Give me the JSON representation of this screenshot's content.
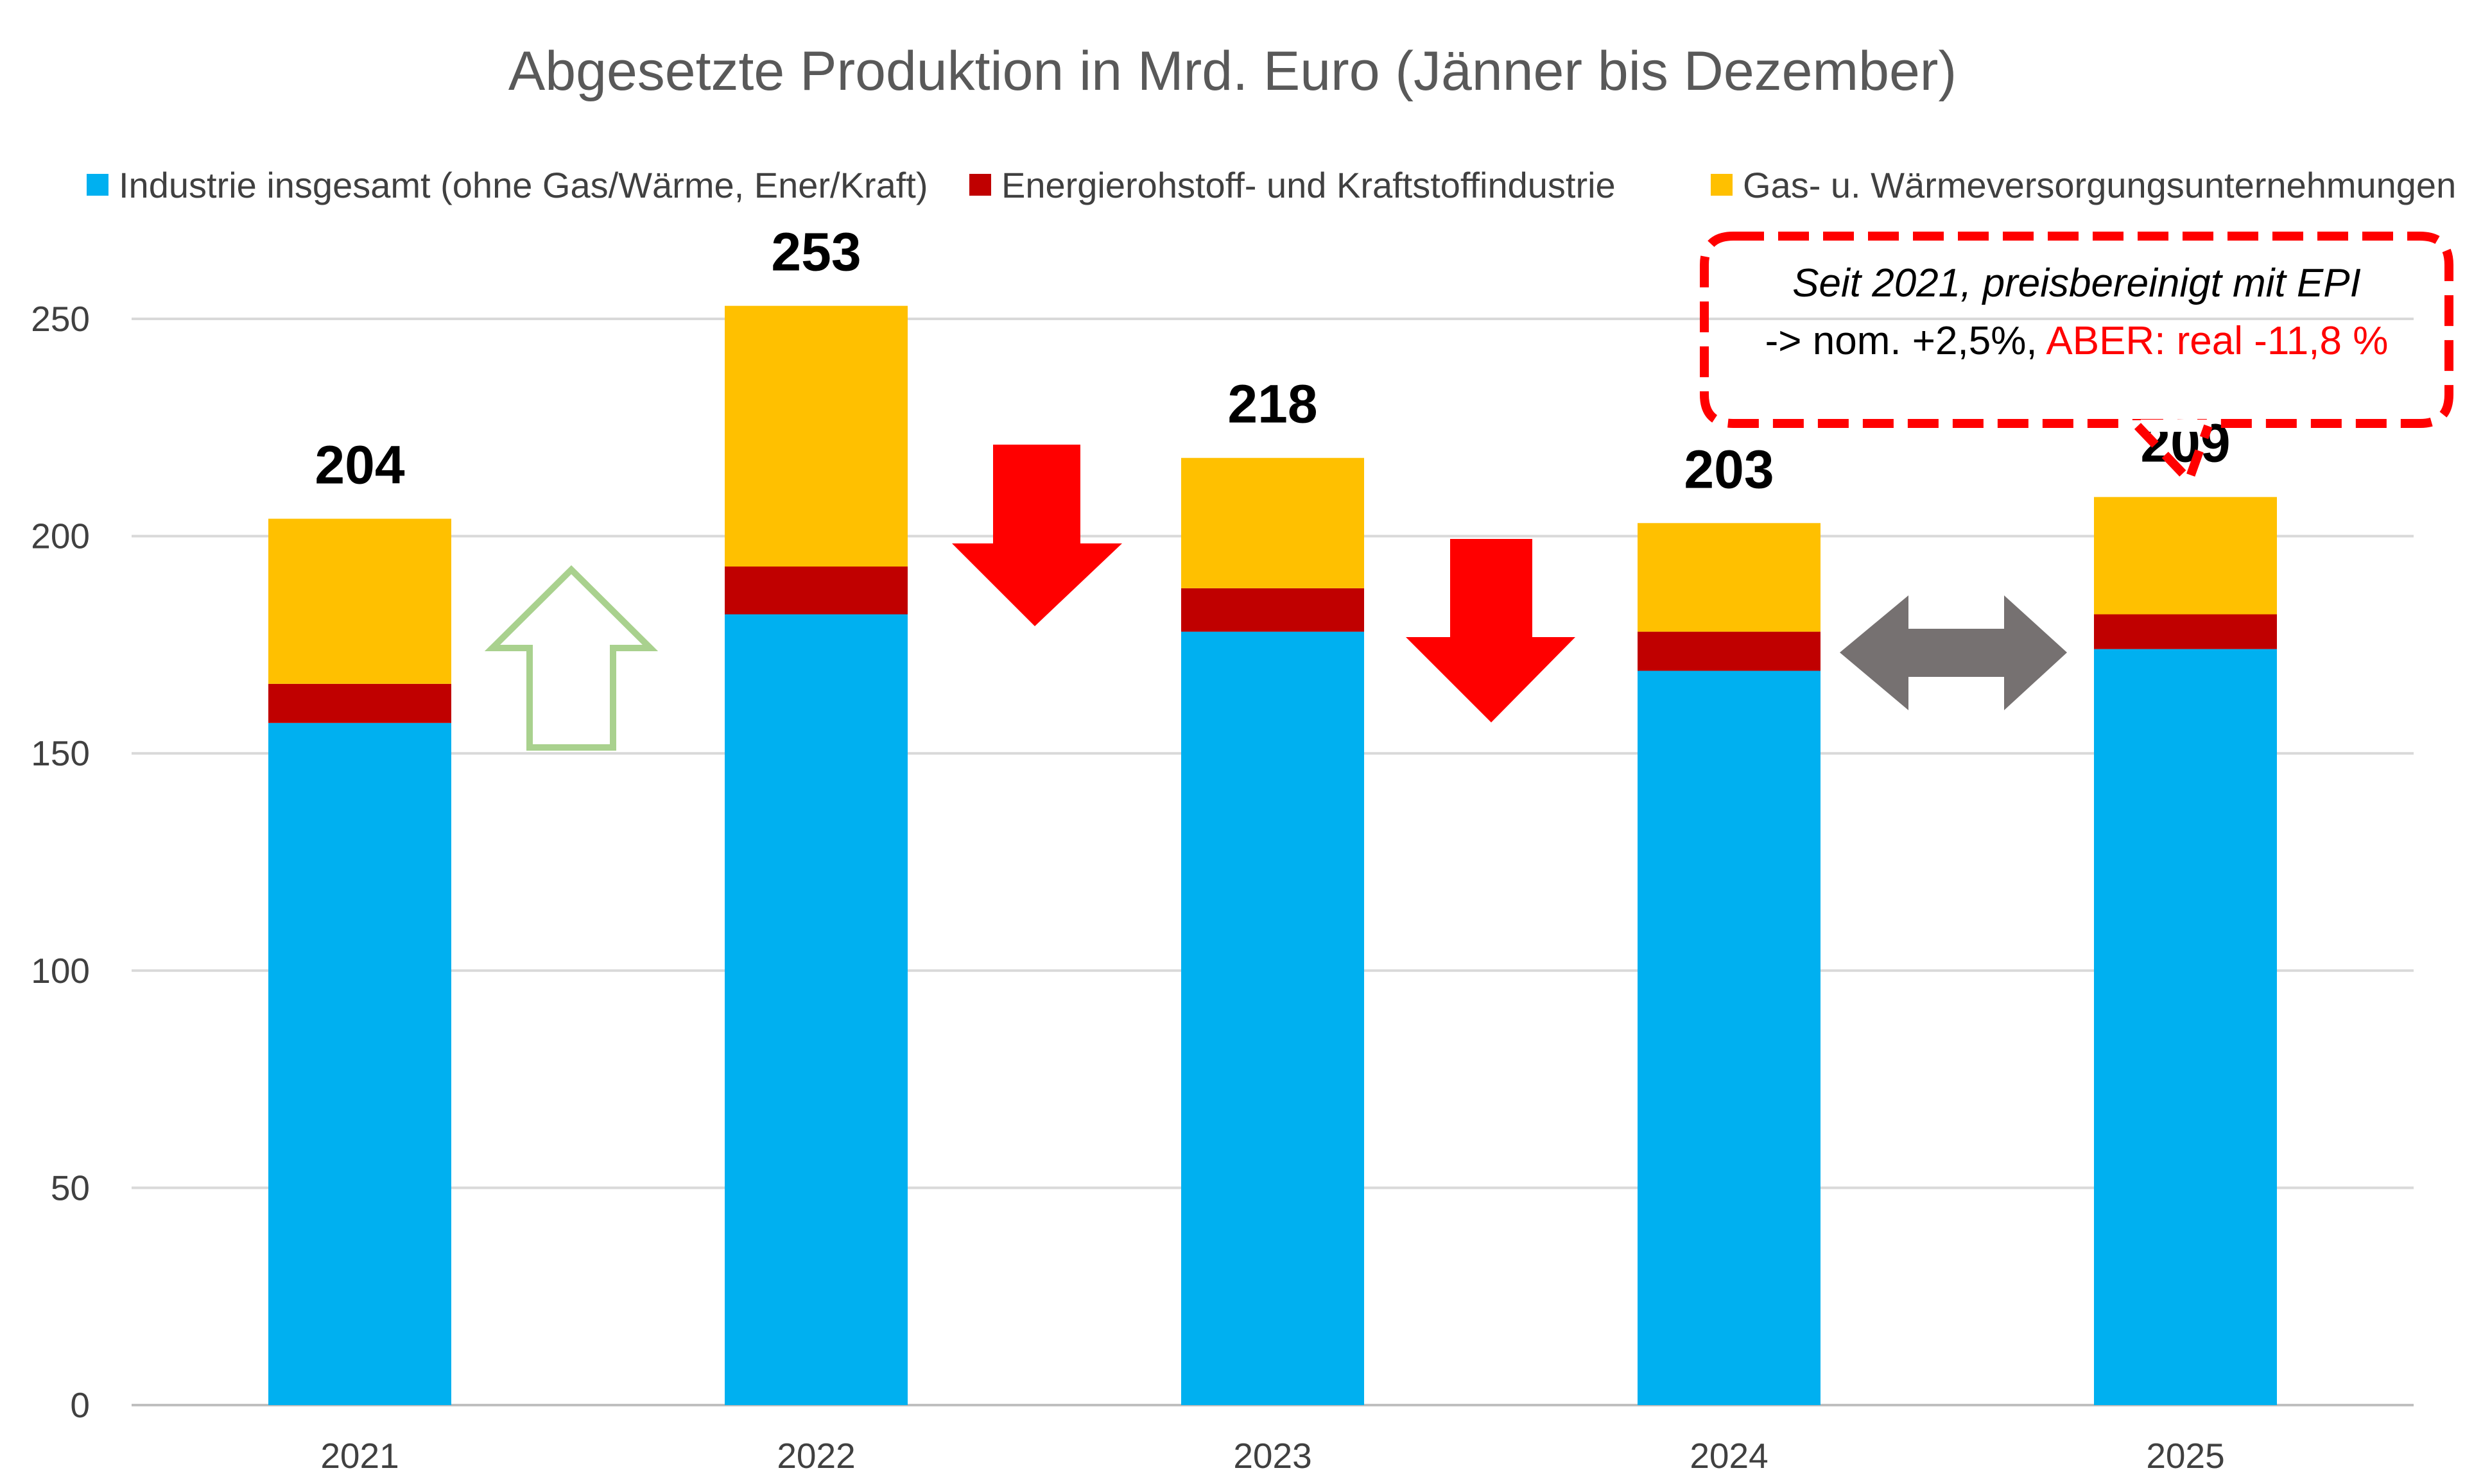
{
  "chart_data": {
    "type": "bar",
    "stacked": true,
    "title": "Abgesetzte Produktion in Mrd. Euro (Jänner bis Dezember)",
    "categories": [
      "2021",
      "2022",
      "2023",
      "2024",
      "2025"
    ],
    "series": [
      {
        "name": "Industrie insgesamt (ohne Gas/Wärme, Ener/Kraft)",
        "color": "#00B0F0",
        "values": [
          157,
          182,
          178,
          169,
          174
        ]
      },
      {
        "name": "Energierohstoff- und Kraftstoffindustrie",
        "color": "#C00000",
        "values": [
          9,
          11,
          10,
          9,
          8
        ]
      },
      {
        "name": "Gas- u. Wärmeversorgungsunternehmungen",
        "color": "#FFC000",
        "values": [
          38,
          60,
          30,
          25,
          27
        ]
      }
    ],
    "totals": [
      "204",
      "253",
      "218",
      "203",
      "209"
    ],
    "ylim": [
      0,
      250
    ],
    "yticks": [
      "0",
      "50",
      "100",
      "150",
      "200",
      "250"
    ],
    "grid": true,
    "legend_position": "top",
    "annotations": {
      "trend_arrows": [
        {
          "from": "2021",
          "to": "2022",
          "direction": "up",
          "style": "outline",
          "color": "#A9D18E"
        },
        {
          "from": "2022",
          "to": "2023",
          "direction": "down",
          "style": "filled",
          "color": "#FF0000"
        },
        {
          "from": "2023",
          "to": "2024",
          "direction": "down",
          "style": "filled",
          "color": "#FF0000"
        },
        {
          "from": "2024",
          "to": "2025",
          "direction": "both",
          "style": "filled",
          "color": "#767171"
        }
      ],
      "callout": {
        "line1": "Seit 2021, preisbereinigt mit EPI",
        "line2_part1": "-> nom. +2,5%, ",
        "line2_part2": "ABER: real -11,8 %",
        "highlight_color": "#FF0000",
        "border_color": "#FF0000"
      }
    }
  }
}
